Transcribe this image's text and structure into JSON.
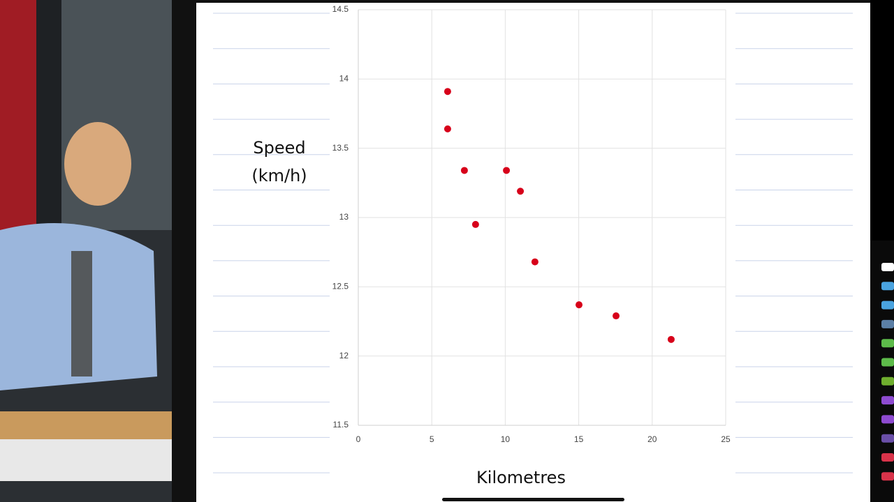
{
  "chart_data": {
    "type": "scatter",
    "x_label": "Kilometres",
    "y_label": "Speed (km/h)",
    "x": [
      6.08,
      6.08,
      7.22,
      10.08,
      11.03,
      7.98,
      12.02,
      15.02,
      17.54,
      21.29
    ],
    "values": [
      13.91,
      13.64,
      13.34,
      13.34,
      13.19,
      12.95,
      12.68,
      12.37,
      12.29,
      12.12
    ],
    "color": "#d7001a",
    "xlim": [
      0,
      25
    ],
    "xticks": [
      0,
      5,
      10,
      15,
      20,
      25
    ],
    "ylim": [
      11.5,
      14.5
    ],
    "yticks": [
      11.5,
      12,
      12.5,
      13,
      13.5,
      14,
      14.5
    ],
    "grid": true
  }
}
